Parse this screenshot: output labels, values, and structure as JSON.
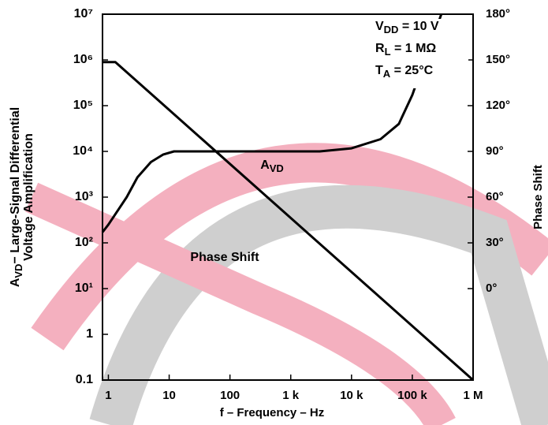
{
  "chart_data": {
    "type": "line",
    "xlabel": "f – Frequency – Hz",
    "ylabel": [
      [
        "A",
        "VD",
        "− Large-Signal Differential"
      ],
      [
        "Voltage Amplification"
      ]
    ],
    "y2label": "Phase Shift",
    "xscale": "log",
    "yscale": "log",
    "xlim": [
      0.8,
      1000000
    ],
    "ylim": [
      0.1,
      10000000
    ],
    "y2lim": [
      -60,
      180
    ],
    "xticks": [
      1,
      10,
      100,
      {
        "value": 1000,
        "label": "1 k"
      },
      {
        "value": 10000,
        "label": "10 k"
      },
      {
        "value": 100000,
        "label": "100 k"
      },
      {
        "value": 1000000,
        "label": "1 M"
      }
    ],
    "yticks": [
      0.1,
      1,
      {
        "value": 10,
        "label": "10¹"
      },
      {
        "value": 100,
        "label": "10²"
      },
      {
        "value": 1000,
        "label": "10³"
      },
      {
        "value": 10000,
        "label": "10⁴"
      },
      {
        "value": 100000,
        "label": "10⁵"
      },
      {
        "value": 1000000,
        "label": "10⁶"
      },
      {
        "value": 10000000,
        "label": "10⁷"
      }
    ],
    "y2ticks": [
      {
        "value": 0,
        "label": "0°"
      },
      {
        "value": 30,
        "label": "30°"
      },
      {
        "value": 60,
        "label": "60°"
      },
      {
        "value": 90,
        "label": "90°"
      },
      {
        "value": 120,
        "label": "120°"
      },
      {
        "value": 150,
        "label": "150°"
      },
      {
        "value": 180,
        "label": "180°"
      }
    ],
    "series": [
      {
        "color": "#000000",
        "x": [
          0.8,
          1.3,
          1000000
        ],
        "values": [
          900000,
          900000,
          0.1
        ]
      },
      {
        "color": "#000000",
        "axis": "y2",
        "x": [
          0.8,
          1,
          2,
          3,
          5,
          8,
          12,
          100,
          1000,
          3000,
          10000,
          30000,
          60000,
          100000,
          150000,
          200000,
          300000
        ],
        "values": [
          37,
          42,
          60,
          73,
          83,
          88,
          90,
          90,
          90,
          90,
          92,
          98,
          108,
          127,
          147,
          160,
          180
        ]
      }
    ],
    "annotations": [
      {
        "parts": [
          "A",
          "VD"
        ]
      },
      {
        "parts": [
          "Phase Shift"
        ]
      }
    ],
    "conditions": [
      [
        "V",
        "DD",
        " = 10 V"
      ],
      [
        "R",
        "L",
        " = 1 MΩ"
      ],
      [
        "T",
        "A",
        " = 25°C"
      ]
    ]
  }
}
